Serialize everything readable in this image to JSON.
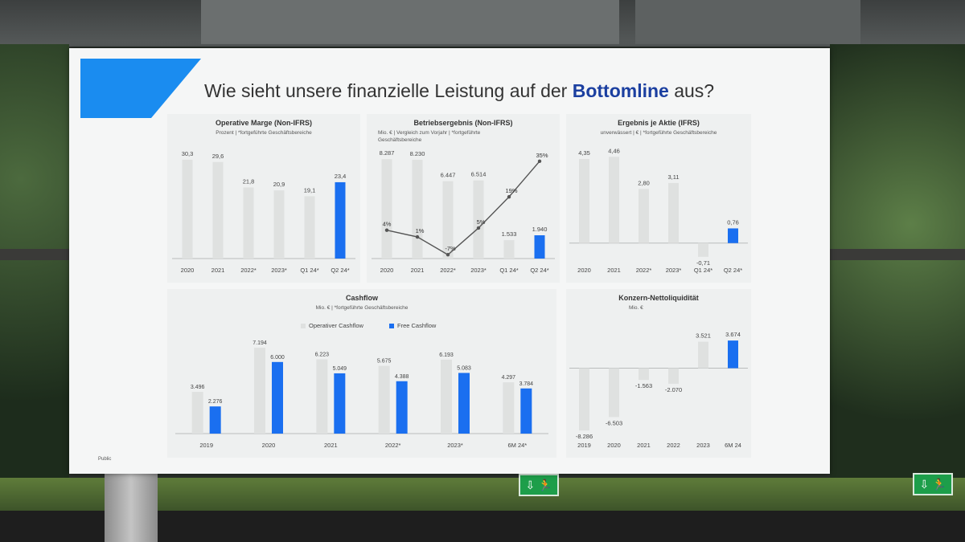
{
  "slide": {
    "title_prefix": "Wie sieht unsere finanzielle Leistung auf der ",
    "title_highlight": "Bottomline",
    "title_suffix": " aus?",
    "footer": "Public"
  },
  "colors": {
    "accent": "#1a6ff0",
    "muted": "#dfe1e0",
    "line": "#555555",
    "title_highlight": "#1b3fa0"
  },
  "signs": {
    "exit_glyph": "⇩ 🏃"
  },
  "chart_data": [
    {
      "id": "op_margin",
      "type": "bar",
      "title": "Operative Marge (Non-IFRS)",
      "subtitle": "Prozent | *fortgeführte Geschäftsbereiche",
      "categories": [
        "2020",
        "2021",
        "2022*",
        "2023*",
        "Q1 24*",
        "Q2 24*"
      ],
      "values": [
        30.3,
        29.6,
        21.8,
        20.9,
        19.1,
        23.4
      ],
      "value_labels": [
        "30,3",
        "29,6",
        "21,8",
        "20,9",
        "19,1",
        "23,4"
      ],
      "highlight": [
        5
      ],
      "ylim": [
        0,
        32
      ]
    },
    {
      "id": "ebit",
      "type": "bar",
      "title": "Betriebsergebnis (Non-IFRS)",
      "subtitle": "Mio. € | Vergleich zum Vorjahr | *fortgeführte Geschäftsbereiche",
      "categories": [
        "2020",
        "2021",
        "2022*",
        "2023*",
        "Q1 24*",
        "Q2 24*"
      ],
      "values": [
        8287,
        8230,
        6447,
        6514,
        1533,
        1940
      ],
      "value_labels": [
        "8.287",
        "8.230",
        "6.447",
        "6.514",
        "1.533",
        "1.940"
      ],
      "highlight": [
        5
      ],
      "ylim": [
        0,
        8700
      ],
      "line_values": [
        4,
        1,
        -7,
        5,
        19,
        35
      ],
      "line_labels": [
        "4%",
        "1%",
        "-7%",
        "5%",
        "19%",
        "35%"
      ],
      "line_ylim": [
        -8,
        36
      ]
    },
    {
      "id": "eps",
      "type": "bar",
      "title": "Ergebnis je Aktie (IFRS)",
      "subtitle": "unverwässert | € | *fortgeführte Geschäftsbereiche",
      "categories": [
        "2020",
        "2021",
        "2022*",
        "2023*",
        "Q1 24*",
        "Q2 24*"
      ],
      "values": [
        4.35,
        4.46,
        2.8,
        3.11,
        -0.71,
        0.76
      ],
      "value_labels": [
        "4,35",
        "4,46",
        "2,80",
        "3,11",
        "-0,71",
        "0,76"
      ],
      "highlight": [
        5
      ],
      "ylim": [
        -0.8,
        4.6
      ]
    },
    {
      "id": "cashflow",
      "type": "bar",
      "title": "Cashflow",
      "subtitle": "Mio. € | *fortgeführte Geschäftsbereiche",
      "categories": [
        "2019",
        "2020",
        "2021",
        "2022*",
        "2023*",
        "6M 24*"
      ],
      "series": [
        {
          "name": "Operativer Cashflow",
          "values": [
            3496,
            7194,
            6223,
            5675,
            6193,
            4297
          ],
          "value_labels": [
            "3.496",
            "7.194",
            "6.223",
            "5.675",
            "6.193",
            "4.297"
          ]
        },
        {
          "name": "Free Cashflow",
          "values": [
            2276,
            6000,
            5049,
            4388,
            5083,
            3784
          ],
          "value_labels": [
            "2.276",
            "6.000",
            "5.049",
            "4.388",
            "5.083",
            "3.784"
          ]
        }
      ],
      "legend": "top",
      "ylim": [
        0,
        7400
      ]
    },
    {
      "id": "net_liquidity",
      "type": "bar",
      "title": "Konzern-Nettoliquidität",
      "subtitle": "Mio. €",
      "categories": [
        "2019",
        "2020",
        "2021",
        "2022",
        "2023",
        "6M 24"
      ],
      "values": [
        -8286,
        -6503,
        -1563,
        -2070,
        3521,
        3674
      ],
      "value_labels": [
        "-8.286",
        "-6.503",
        "-1.563",
        "-2.070",
        "3.521",
        "3.674"
      ],
      "highlight": [
        5
      ],
      "ylim": [
        -8700,
        3900
      ]
    }
  ]
}
